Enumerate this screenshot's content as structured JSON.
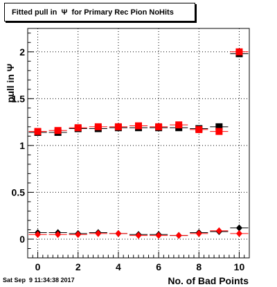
{
  "chart_data": {
    "type": "scatter",
    "title": "Fitted pull in  Ψ  for Primary Rec Pion NoHits",
    "xlabel": "No. of Bad Points",
    "ylabel": "pull in  Ψ",
    "xlim": [
      -0.5,
      10.5
    ],
    "ylim": [
      -0.2,
      2.25
    ],
    "x_ticks": [
      0,
      2,
      4,
      6,
      8,
      10
    ],
    "y_ticks": [
      0,
      0.5,
      1,
      1.5,
      2
    ],
    "grid": true,
    "x": [
      0,
      1,
      2,
      3,
      4,
      5,
      6,
      7,
      8,
      9,
      10
    ],
    "series": [
      {
        "marker": "square",
        "color": "#000000",
        "values": [
          1.14,
          1.14,
          1.18,
          1.18,
          1.19,
          1.19,
          1.19,
          1.19,
          1.18,
          1.2,
          1.98
        ]
      },
      {
        "marker": "square",
        "color": "#ff0000",
        "values": [
          1.15,
          1.16,
          1.19,
          1.2,
          1.2,
          1.21,
          1.2,
          1.22,
          1.17,
          1.15,
          2.0
        ]
      },
      {
        "marker": "diamond",
        "color": "#000000",
        "values": [
          0.07,
          0.07,
          0.06,
          0.07,
          0.06,
          0.05,
          0.05,
          0.04,
          0.07,
          0.08,
          0.12
        ]
      },
      {
        "marker": "diamond",
        "color": "#ff0000",
        "values": [
          0.05,
          0.05,
          0.05,
          0.06,
          0.06,
          0.04,
          0.04,
          0.04,
          0.06,
          0.09,
          0.06
        ]
      }
    ]
  },
  "footer": {
    "timestamp": "Sat Sep  9 11:34:38 2017"
  }
}
